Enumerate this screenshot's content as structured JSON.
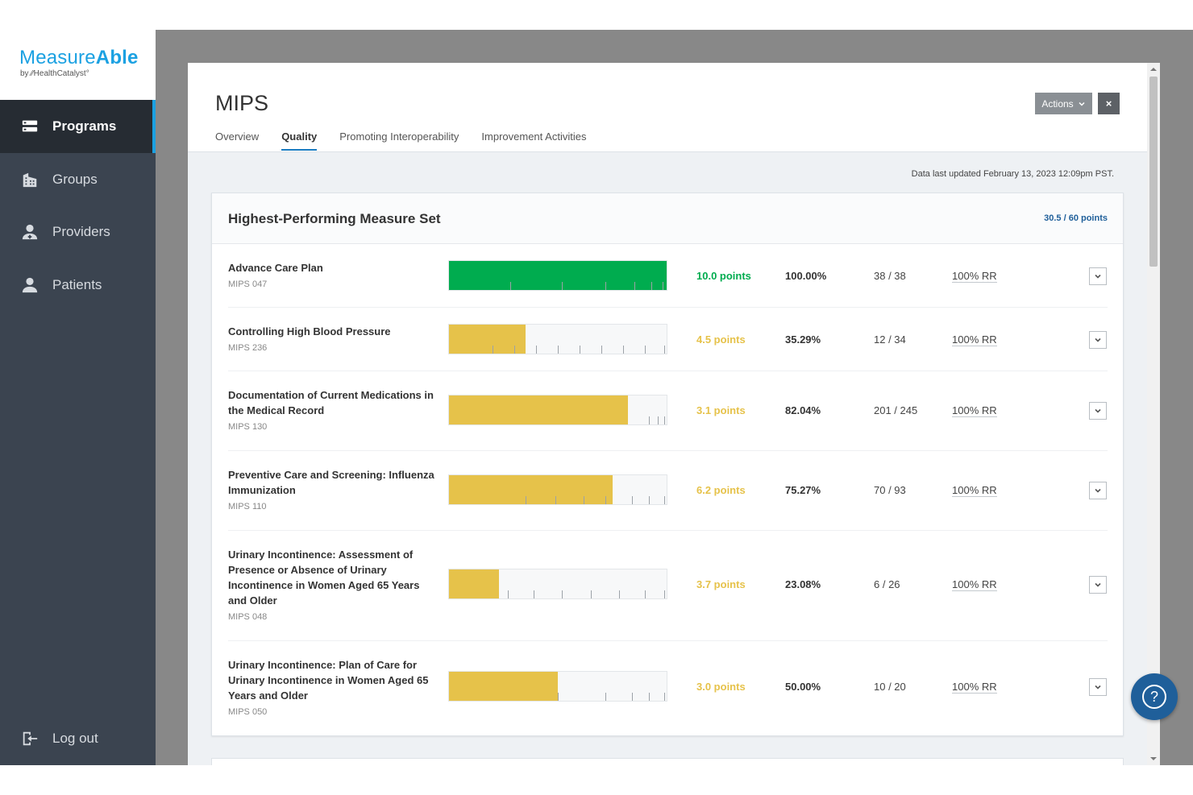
{
  "brand": {
    "name_light": "Measure",
    "name_bold": "Able",
    "sub": "by ⁄⁄HealthCatalyst°"
  },
  "sidebar": {
    "items": [
      {
        "label": "Programs",
        "icon": "programs-icon",
        "active": true
      },
      {
        "label": "Groups",
        "icon": "building-icon",
        "active": false
      },
      {
        "label": "Providers",
        "icon": "provider-icon",
        "active": false
      },
      {
        "label": "Patients",
        "icon": "patient-icon",
        "active": false
      }
    ],
    "logout": {
      "label": "Log out",
      "icon": "logout-icon"
    }
  },
  "modal": {
    "title": "MIPS",
    "tabs": [
      "Overview",
      "Quality",
      "Promoting Interoperability",
      "Improvement Activities"
    ],
    "active_tab": "Quality",
    "actions_label": "Actions",
    "close_label": "×",
    "updated": "Data last updated February 13, 2023 12:09pm PST."
  },
  "card": {
    "title": "Highest-Performing Measure Set",
    "points": "30.5 / 60 points",
    "measures": [
      {
        "name": "Advance Care Plan",
        "id": "MIPS 047",
        "points": "10.0 points",
        "percent": "100.00%",
        "fraction": "38 / 38",
        "rr": "100% RR",
        "fill": 1.0,
        "status": "green",
        "ticks": [
          0.28,
          0.52,
          0.72,
          0.85,
          0.93,
          0.98
        ]
      },
      {
        "name": "Controlling High Blood Pressure",
        "id": "MIPS 236",
        "points": "4.5 points",
        "percent": "35.29%",
        "fraction": "12 / 34",
        "rr": "100% RR",
        "fill": 0.3529,
        "status": "yellow",
        "ticks": [
          0.2,
          0.3,
          0.4,
          0.5,
          0.6,
          0.7,
          0.8,
          0.9,
          0.99
        ]
      },
      {
        "name": "Documentation of Current Medications in the Medical Record",
        "id": "MIPS 130",
        "points": "3.1 points",
        "percent": "82.04%",
        "fraction": "201 / 245",
        "rr": "100% RR",
        "fill": 0.8204,
        "status": "yellow",
        "ticks": [
          0.92,
          0.96,
          0.99
        ]
      },
      {
        "name": "Preventive Care and Screening: Influenza Immunization",
        "id": "MIPS 110",
        "points": "6.2 points",
        "percent": "75.27%",
        "fraction": "70 / 93",
        "rr": "100% RR",
        "fill": 0.7527,
        "status": "yellow",
        "ticks": [
          0.35,
          0.49,
          0.62,
          0.72,
          0.84,
          0.92,
          0.99
        ]
      },
      {
        "name": "Urinary Incontinence: Assessment of Presence or Absence of Urinary Incontinence in Women Aged 65 Years and Older",
        "id": "MIPS 048",
        "points": "3.7 points",
        "percent": "23.08%",
        "fraction": "6 / 26",
        "rr": "100% RR",
        "fill": 0.2308,
        "status": "yellow",
        "ticks": [
          0.27,
          0.39,
          0.52,
          0.65,
          0.78,
          0.9,
          0.99
        ]
      },
      {
        "name": "Urinary Incontinence: Plan of Care for Urinary Incontinence in Women Aged 65 Years and Older",
        "id": "MIPS 050",
        "points": "3.0 points",
        "percent": "50.00%",
        "fraction": "10 / 20",
        "rr": "100% RR",
        "fill": 0.5,
        "status": "yellow",
        "ticks": [
          0.5,
          0.72,
          0.84,
          0.92,
          0.99
        ]
      }
    ]
  },
  "colors": {
    "green": "#00ac4f",
    "yellow": "#e6c24a",
    "accent": "#1ba1e2",
    "navy": "#1f5f9a"
  },
  "help": {
    "label": "?"
  }
}
